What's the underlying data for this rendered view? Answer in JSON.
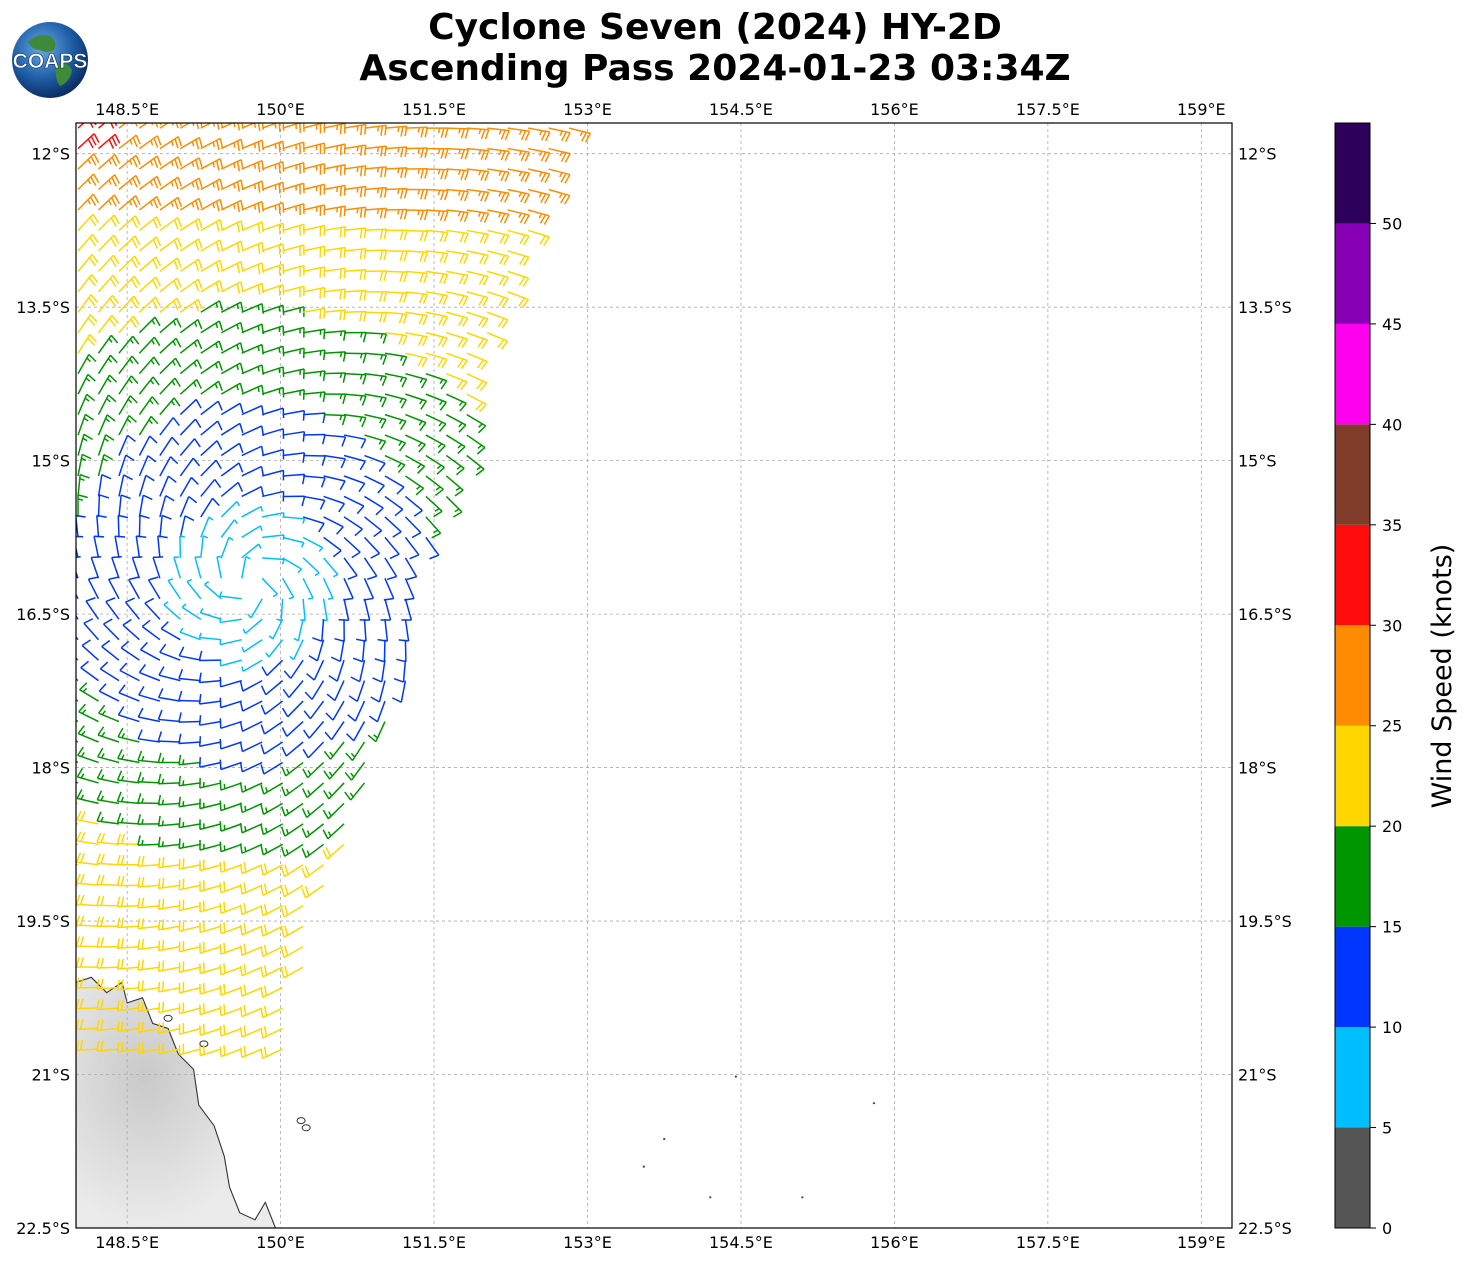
{
  "header": {
    "line1": "Cyclone Seven (2024) HY-2D",
    "line2": "Ascending Pass 2024-01-23 03:34Z",
    "logo_text": "COAPS"
  },
  "map": {
    "lon_range": [
      148.0,
      159.3
    ],
    "lat_range": [
      -22.5,
      -11.7
    ],
    "lon_ticks": [
      {
        "value": 148.5,
        "label": "148.5°E"
      },
      {
        "value": 150.0,
        "label": "150°E"
      },
      {
        "value": 151.5,
        "label": "151.5°E"
      },
      {
        "value": 153.0,
        "label": "153°E"
      },
      {
        "value": 154.5,
        "label": "154.5°E"
      },
      {
        "value": 156.0,
        "label": "156°E"
      },
      {
        "value": 157.5,
        "label": "157.5°E"
      },
      {
        "value": 159.0,
        "label": "159°E"
      }
    ],
    "lat_ticks": [
      {
        "value": -12.0,
        "label": "12°S"
      },
      {
        "value": -13.5,
        "label": "13.5°S"
      },
      {
        "value": -15.0,
        "label": "15°S"
      },
      {
        "value": -16.5,
        "label": "16.5°S"
      },
      {
        "value": -18.0,
        "label": "18°S"
      },
      {
        "value": -19.5,
        "label": "19.5°S"
      },
      {
        "value": -21.0,
        "label": "21°S"
      },
      {
        "value": -22.5,
        "label": "22.5°S"
      }
    ],
    "gridlines": true,
    "land_color": "#dcdcdc",
    "coast_color": "#333333"
  },
  "colorbar": {
    "label": "Wind Speed (knots)",
    "ticks": [
      "0",
      "5",
      "10",
      "15",
      "20",
      "25",
      "30",
      "35",
      "40",
      "45",
      "50"
    ],
    "bins": [
      {
        "min": 0,
        "max": 5,
        "color": "#555555"
      },
      {
        "min": 5,
        "max": 10,
        "color": "#00bfff"
      },
      {
        "min": 10,
        "max": 15,
        "color": "#0037ff"
      },
      {
        "min": 15,
        "max": 20,
        "color": "#009600"
      },
      {
        "min": 20,
        "max": 25,
        "color": "#ffd700"
      },
      {
        "min": 25,
        "max": 30,
        "color": "#ff8c00"
      },
      {
        "min": 30,
        "max": 35,
        "color": "#ff0d0d"
      },
      {
        "min": 35,
        "max": 40,
        "color": "#803c28"
      },
      {
        "min": 40,
        "max": 45,
        "color": "#ff00ee"
      },
      {
        "min": 45,
        "max": 50,
        "color": "#8800b5"
      },
      {
        "min": 50,
        "max": 55,
        "color": "#2d005c"
      }
    ]
  },
  "chart_data": {
    "type": "wind_barb_map",
    "storm_center": {
      "lon": 149.7,
      "lat": -16.2
    },
    "swath_east_edge": [
      {
        "lat": -11.7,
        "lon": 152.85
      },
      {
        "lat": -13.0,
        "lon": 152.4
      },
      {
        "lat": -14.0,
        "lon": 151.9
      },
      {
        "lat": -15.0,
        "lon": 151.9
      },
      {
        "lat": -15.8,
        "lon": 151.4
      },
      {
        "lat": -16.9,
        "lon": 151.4
      },
      {
        "lat": -18.0,
        "lon": 150.9
      },
      {
        "lat": -19.5,
        "lon": 150.35
      },
      {
        "lat": -20.9,
        "lon": 150.0
      }
    ],
    "swath_west_edge_lon": 148.0,
    "swath_south_lat": -20.9,
    "speed_regions": [
      {
        "note": "northern band",
        "lat_max": -11.7,
        "lat_min": -12.6,
        "speed": 27
      },
      {
        "note": "north transition",
        "lat_max": -12.6,
        "lat_min": -13.3,
        "speed": 22
      },
      {
        "note": "inner core",
        "radius_deg": 0.8,
        "speed": 8
      },
      {
        "note": "inner ring",
        "radius_deg": 1.8,
        "speed": 13
      },
      {
        "note": "outer ring",
        "radius_deg": 2.7,
        "speed": 17
      },
      {
        "note": "outer",
        "speed": 22
      }
    ],
    "peak_speed_knots": 32
  }
}
